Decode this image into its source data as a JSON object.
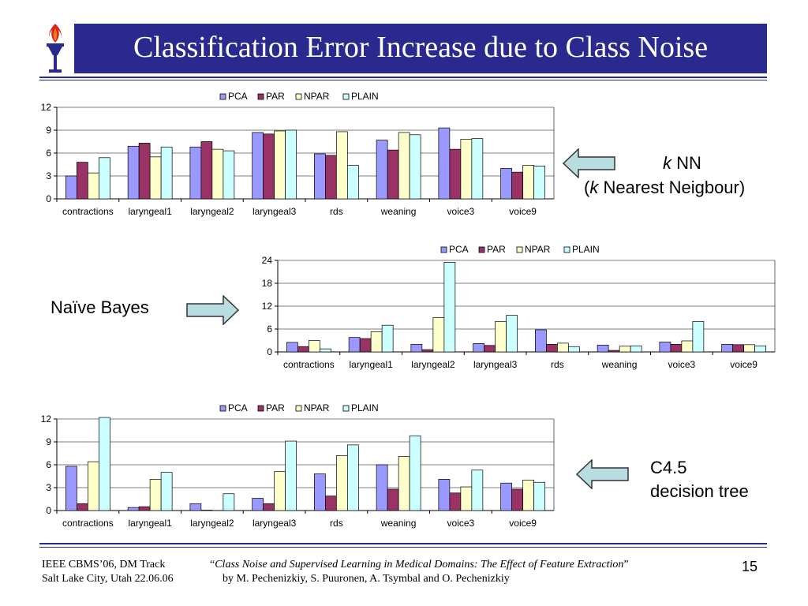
{
  "slide": {
    "title": "Classification Error Increase due to Class Noise",
    "page_number": "15"
  },
  "colors": {
    "title_bg": "#2A2A8E",
    "PCA": "#9999FF",
    "PAR": "#993366",
    "NPAR": "#FFFFCC",
    "PLAIN": "#CCFFFF",
    "arrow_fill": "#B7DDE0"
  },
  "annotations": {
    "knn_k": "k",
    "knn_name": " NN",
    "knn_open": "(",
    "knn_k2": "k",
    "knn_full": " Nearest Neigbour)",
    "nb": "Naïve Bayes",
    "c45_line1": "C4.5",
    "c45_line2": "decision tree"
  },
  "footer": {
    "left_line1": "IEEE CBMS’06, DM Track",
    "left_line2": "Salt Lake City, Utah 22.06.06",
    "quote_open": "“",
    "paper_title": "Class Noise and Supervised Learning in Medical Domains: The Effect of Feature Extraction",
    "quote_close": "”",
    "authors": "by M. Pechenizkiy, S. Puuronen, A. Tsymbal and O. Pechenizkiy"
  },
  "chart_data": [
    {
      "type": "bar",
      "categories": [
        "contractions",
        "laryngeal1",
        "laryngeal2",
        "laryngeal3",
        "rds",
        "weaning",
        "voice3",
        "voice9"
      ],
      "series": [
        {
          "name": "PCA",
          "values": [
            3.0,
            6.9,
            6.8,
            8.7,
            5.9,
            7.7,
            9.3,
            4.0
          ]
        },
        {
          "name": "PAR",
          "values": [
            4.8,
            7.3,
            7.5,
            8.5,
            5.7,
            6.4,
            6.5,
            3.5
          ]
        },
        {
          "name": "NPAR",
          "values": [
            3.4,
            5.5,
            6.5,
            8.9,
            8.8,
            8.7,
            7.8,
            4.4
          ]
        },
        {
          "name": "PLAIN",
          "values": [
            5.4,
            6.8,
            6.3,
            9.0,
            4.4,
            8.4,
            7.9,
            4.3
          ]
        }
      ],
      "ylim": [
        0,
        12
      ],
      "yticks": [
        "0",
        "3",
        "6",
        "9",
        "12"
      ],
      "grid": true,
      "legend": "top"
    },
    {
      "type": "bar",
      "categories": [
        "contractions",
        "laryngeal1",
        "laryngeal2",
        "laryngeal3",
        "rds",
        "weaning",
        "voice3",
        "voice9"
      ],
      "series": [
        {
          "name": "PCA",
          "values": [
            2.5,
            3.8,
            2.0,
            2.2,
            5.8,
            1.8,
            2.6,
            2.0
          ]
        },
        {
          "name": "PAR",
          "values": [
            1.4,
            3.5,
            0.6,
            1.7,
            2.0,
            0.4,
            2.0,
            1.9
          ]
        },
        {
          "name": "NPAR",
          "values": [
            3.0,
            5.3,
            9.0,
            8.0,
            2.3,
            1.5,
            2.9,
            1.9
          ]
        },
        {
          "name": "PLAIN",
          "values": [
            0.8,
            7.0,
            23.5,
            9.6,
            1.4,
            1.6,
            8.0,
            1.6
          ]
        }
      ],
      "ylim": [
        0,
        24
      ],
      "yticks": [
        "0",
        "6",
        "12",
        "18",
        "24"
      ],
      "grid": true,
      "legend": "top"
    },
    {
      "type": "bar",
      "categories": [
        "contractions",
        "laryngeal1",
        "laryngeal2",
        "laryngeal3",
        "rds",
        "weaning",
        "voice3",
        "voice9"
      ],
      "series": [
        {
          "name": "PCA",
          "values": [
            5.8,
            0.4,
            0.9,
            1.6,
            4.8,
            6.0,
            4.1,
            3.6
          ]
        },
        {
          "name": "PAR",
          "values": [
            0.9,
            0.5,
            0.05,
            0.9,
            1.9,
            2.8,
            2.3,
            2.8
          ]
        },
        {
          "name": "NPAR",
          "values": [
            6.4,
            4.1,
            0.0,
            5.1,
            7.2,
            7.1,
            3.1,
            4.0
          ]
        },
        {
          "name": "PLAIN",
          "values": [
            12.2,
            5.0,
            2.2,
            9.1,
            8.6,
            9.8,
            5.3,
            3.7
          ]
        }
      ],
      "ylim": [
        0,
        12
      ],
      "yticks": [
        "0",
        "3",
        "6",
        "9",
        "12"
      ],
      "grid": true,
      "legend": "top"
    }
  ]
}
